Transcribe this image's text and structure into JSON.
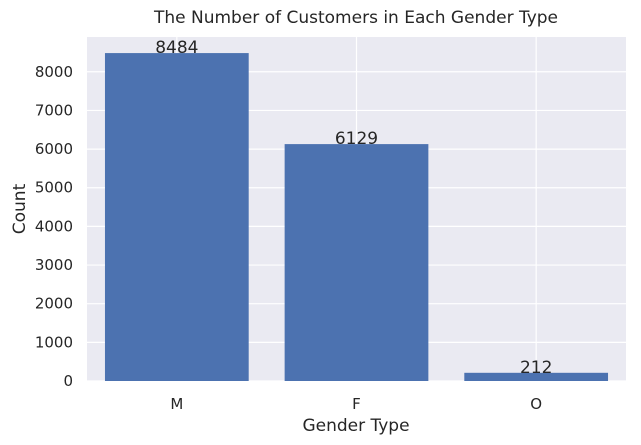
{
  "chart_data": {
    "type": "bar",
    "title": "The Number of Customers in Each Gender Type",
    "xlabel": "Gender Type",
    "ylabel": "Count",
    "categories": [
      "M",
      "F",
      "O"
    ],
    "values": [
      8484,
      6129,
      212
    ],
    "data_labels": [
      "8484",
      "6129",
      "212"
    ],
    "ylim": [
      0,
      8900
    ],
    "yticks": [
      0,
      1000,
      2000,
      3000,
      4000,
      5000,
      6000,
      7000,
      8000
    ],
    "ytick_labels": [
      "0",
      "1000",
      "2000",
      "3000",
      "4000",
      "5000",
      "6000",
      "7000",
      "8000"
    ],
    "grid": true,
    "colors": {
      "bar": "#4c72b0",
      "plot_background": "#eaeaf2",
      "grid": "#ffffff",
      "text": "#262626"
    }
  }
}
